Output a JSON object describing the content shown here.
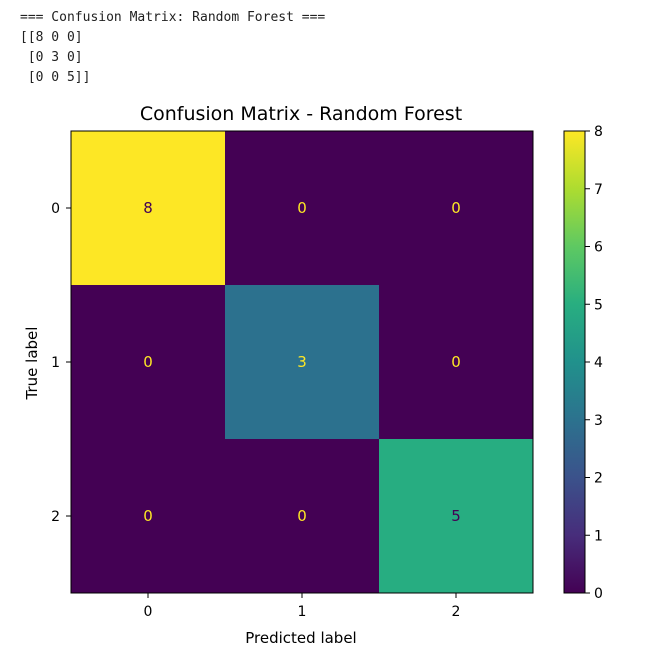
{
  "console": {
    "lines": [
      "=== Confusion Matrix: Random Forest ===",
      "[[8 0 0]",
      " [0 3 0]",
      " [0 0 5]]"
    ]
  },
  "chart_data": {
    "type": "heatmap",
    "title": "Confusion Matrix - Random Forest",
    "xlabel": "Predicted label",
    "ylabel": "True label",
    "x_ticks": [
      "0",
      "1",
      "2"
    ],
    "y_ticks": [
      "0",
      "1",
      "2"
    ],
    "matrix": [
      [
        8,
        0,
        0
      ],
      [
        0,
        3,
        0
      ],
      [
        0,
        0,
        5
      ]
    ],
    "colorscale": "viridis",
    "colorbar": {
      "min": 0,
      "max": 8,
      "ticks": [
        0,
        1,
        2,
        3,
        4,
        5,
        6,
        7,
        8
      ]
    }
  }
}
